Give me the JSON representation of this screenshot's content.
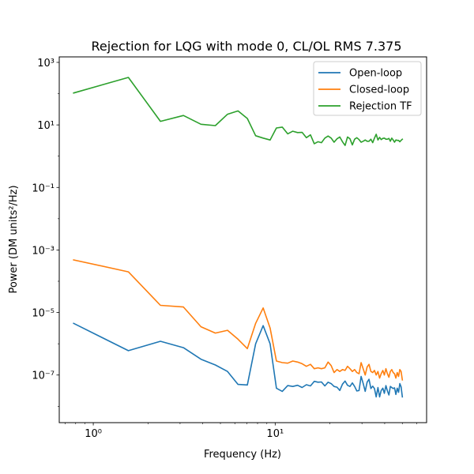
{
  "chart_data": {
    "type": "line",
    "title": "Rejection for LQG with mode 0, CL/OL RMS 7.375",
    "xlabel": "Frequency (Hz)",
    "ylabel": "Power (DM units²/Hz)",
    "xscale": "log",
    "yscale": "log",
    "xlim": [
      0.65,
      68
    ],
    "ylim": [
      3e-09,
      1500
    ],
    "grid": false,
    "legend_position": "top-right",
    "x_ticks": [
      {
        "value": 1,
        "label": "10⁰"
      },
      {
        "value": 10,
        "label": "10¹"
      }
    ],
    "y_ticks": [
      {
        "value": 1e-07,
        "label": "10⁻⁷"
      },
      {
        "value": 1e-05,
        "label": "10⁻⁵"
      },
      {
        "value": 0.001,
        "label": "10⁻³"
      },
      {
        "value": 0.1,
        "label": "10⁻¹"
      },
      {
        "value": 10,
        "label": "10¹"
      },
      {
        "value": 1000,
        "label": "10³"
      }
    ],
    "series": [
      {
        "name": "Open-loop",
        "color": "#1f77b4",
        "x": [
          0.78,
          1.56,
          2.34,
          3.13,
          3.91,
          4.69,
          5.47,
          6.25,
          7.03,
          7.81,
          8.59,
          9.38,
          10.16,
          10.94,
          11.72,
          12.5,
          13.28,
          14.06,
          14.84,
          15.63,
          16.41,
          17.19,
          17.97,
          18.75,
          19.53,
          20.31,
          21.09,
          21.88,
          22.66,
          23.44,
          24.22,
          25.0,
          25.78,
          26.56,
          27.34,
          28.13,
          28.91,
          29.69,
          30.47,
          31.25,
          32.03,
          32.81,
          33.59,
          34.38,
          35.16,
          35.94,
          36.72,
          37.5,
          38.28,
          39.06,
          39.84,
          40.63,
          41.41,
          42.19,
          42.97,
          43.75,
          44.53,
          45.31,
          46.09,
          46.88,
          47.66,
          48.44,
          49.22,
          50.0
        ],
        "y": [
          4.5e-06,
          6e-07,
          1.2e-06,
          7.5e-07,
          3.2e-07,
          2.1e-07,
          1.3e-07,
          5e-08,
          4.8e-08,
          1e-06,
          3.8e-06,
          1e-06,
          3.8e-08,
          3e-08,
          4.6e-08,
          4.3e-08,
          4.7e-08,
          4e-08,
          4.9e-08,
          4.5e-08,
          6.3e-08,
          5.9e-08,
          6e-08,
          4.5e-08,
          5.9e-08,
          5.3e-08,
          4.3e-08,
          4.1e-08,
          3.2e-08,
          5.1e-08,
          6.4e-08,
          4.7e-08,
          4.3e-08,
          5.6e-08,
          4.3e-08,
          3.1e-08,
          3.2e-08,
          9e-08,
          5.4e-08,
          3e-08,
          5.9e-08,
          7.3e-08,
          3.7e-08,
          4.4e-08,
          3.7e-08,
          2e-08,
          4e-08,
          2e-08,
          3.2e-08,
          3.8e-08,
          2.6e-08,
          4.6e-08,
          3.1e-08,
          2.3e-08,
          4.3e-08,
          4e-08,
          3.7e-08,
          3.9e-08,
          2.4e-08,
          3.8e-08,
          2.8e-08,
          5.3e-08,
          4.2e-08,
          2e-08
        ]
      },
      {
        "name": "Closed-loop",
        "color": "#ff7f0e",
        "x": [
          0.78,
          1.56,
          2.34,
          3.13,
          3.91,
          4.69,
          5.47,
          6.25,
          7.03,
          7.81,
          8.59,
          9.38,
          10.16,
          10.94,
          11.72,
          12.5,
          13.28,
          14.06,
          14.84,
          15.63,
          16.41,
          17.19,
          17.97,
          18.75,
          19.53,
          20.31,
          21.09,
          21.88,
          22.66,
          23.44,
          24.22,
          25.0,
          25.78,
          26.56,
          27.34,
          28.13,
          28.91,
          29.69,
          30.47,
          31.25,
          32.03,
          32.81,
          33.59,
          34.38,
          35.16,
          35.94,
          36.72,
          37.5,
          38.28,
          39.06,
          39.84,
          40.63,
          41.41,
          42.19,
          42.97,
          43.75,
          44.53,
          45.31,
          46.09,
          46.88,
          47.66,
          48.44,
          49.22,
          50.0
        ],
        "y": [
          0.00048,
          0.0002,
          1.7e-05,
          1.5e-05,
          3.5e-06,
          2.2e-06,
          2.7e-06,
          1.4e-06,
          7e-07,
          4.5e-06,
          1.4e-05,
          3.2e-06,
          2.8e-07,
          2.5e-07,
          2.4e-07,
          2.8e-07,
          2.6e-07,
          2.3e-07,
          1.9e-07,
          2.2e-07,
          1.6e-07,
          1.7e-07,
          1.6e-07,
          1.7e-07,
          2.6e-07,
          2e-07,
          1.2e-07,
          1.5e-07,
          1.3e-07,
          1.5e-07,
          1.4e-07,
          1.9e-07,
          1.6e-07,
          1.3e-07,
          1.5e-07,
          1.2e-07,
          1.1e-07,
          2.5e-07,
          1.6e-07,
          1e-07,
          1.8e-07,
          2.2e-07,
          1.3e-07,
          1.2e-07,
          1.4e-07,
          1e-07,
          1.3e-07,
          8e-08,
          1.1e-07,
          1.4e-07,
          1e-07,
          1.6e-07,
          1.1e-07,
          8.5e-08,
          1.3e-07,
          1.5e-07,
          1.2e-07,
          1.1e-07,
          8e-08,
          1.2e-07,
          9e-08,
          1.5e-07,
          1.3e-07,
          7e-08
        ]
      },
      {
        "name": "Rejection TF",
        "color": "#2ca02c",
        "x": [
          0.78,
          1.56,
          2.34,
          3.13,
          3.91,
          4.69,
          5.47,
          6.25,
          7.03,
          7.81,
          8.59,
          9.38,
          10.16,
          10.94,
          11.72,
          12.5,
          13.28,
          14.06,
          14.84,
          15.63,
          16.41,
          17.19,
          17.97,
          18.75,
          19.53,
          20.31,
          21.09,
          21.88,
          22.66,
          23.44,
          24.22,
          25.0,
          25.78,
          26.56,
          27.34,
          28.13,
          28.91,
          29.69,
          30.47,
          31.25,
          32.03,
          32.81,
          33.59,
          34.38,
          35.16,
          35.94,
          36.72,
          37.5,
          38.28,
          39.06,
          39.84,
          40.63,
          41.41,
          42.19,
          42.97,
          43.75,
          44.53,
          45.31,
          46.09,
          46.88,
          47.66,
          48.44,
          49.22,
          50.0
        ],
        "y": [
          105,
          330,
          13,
          20,
          10.5,
          9.5,
          22,
          28,
          16,
          4.5,
          3.8,
          3.3,
          8,
          8.5,
          5.2,
          6.3,
          5.7,
          5.8,
          3.9,
          4.8,
          2.5,
          2.9,
          2.7,
          3.8,
          4.4,
          3.8,
          2.8,
          3.6,
          4.1,
          2.9,
          2.2,
          4.1,
          3.6,
          2.3,
          3.5,
          3.9,
          3.4,
          2.8,
          3,
          3.3,
          3,
          3,
          3.5,
          2.7,
          3.8,
          5,
          3.3,
          4,
          3.4,
          3.7,
          3.8,
          3.5,
          3.5,
          3.7,
          3,
          3.8,
          3.3,
          2.8,
          3.3,
          3.2,
          3.2,
          2.9,
          3.2,
          3.5
        ]
      }
    ]
  }
}
